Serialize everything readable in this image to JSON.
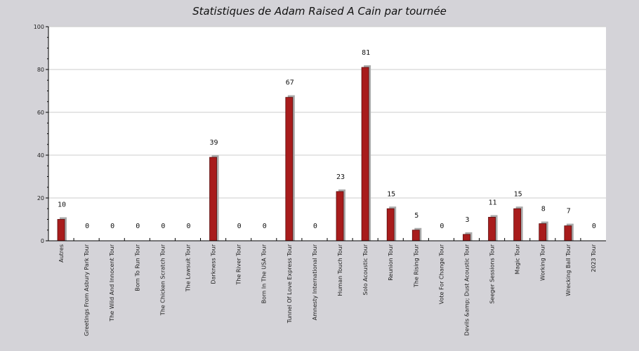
{
  "chart_data": {
    "type": "bar",
    "title": "Statistiques de Adam Raised A Cain par tournée",
    "xlabel": "",
    "ylabel": "",
    "ylim": [
      0,
      100
    ],
    "yticks": [
      0,
      20,
      40,
      60,
      80,
      100
    ],
    "grid": true,
    "categories": [
      "Autres",
      "Greetings From Asbury Park Tour",
      "The Wild And Innocent Tour",
      "Born To Run Tour",
      "The Chicken Scratch Tour",
      "The Lawsuit Tour",
      "Darkness Tour",
      "The River Tour",
      "Born In The USA Tour",
      "Tunnel Of Love Express Tour",
      "Amnesty International Tour",
      "Human Touch Tour",
      "Solo Acoustic Tour",
      "Reunion Tour",
      "The Rising Tour",
      "Vote For Change Tour",
      "Devils &amp; Dust Acoustic Tour",
      "Seeger Sessions Tour",
      "Magic Tour",
      "Working Tour",
      "Wrecking Ball Tour",
      "2023 Tour"
    ],
    "values": [
      10,
      0,
      0,
      0,
      0,
      0,
      39,
      0,
      0,
      67,
      0,
      23,
      81,
      15,
      5,
      0,
      3,
      11,
      15,
      8,
      7,
      0
    ],
    "colors": {
      "bar": "#a81c1c",
      "bar_border": "#5a0c0c",
      "shadow": "#aaaaaa",
      "plot_bg": "#ffffff",
      "page_bg": "#d4d3d8",
      "grid": "#cccccc"
    }
  }
}
